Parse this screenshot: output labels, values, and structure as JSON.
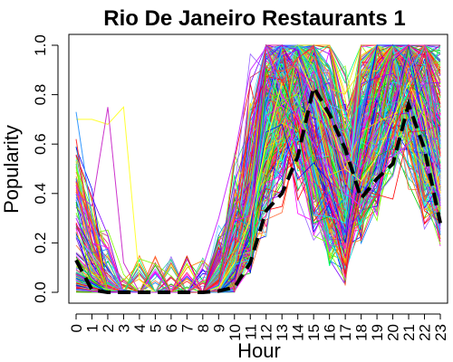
{
  "chart_data": {
    "type": "line",
    "title": "Rio De Janeiro Restaurants 1",
    "xlabel": "Hour",
    "ylabel": "Popularity",
    "x": [
      0,
      1,
      2,
      3,
      4,
      5,
      6,
      7,
      8,
      9,
      10,
      11,
      12,
      13,
      14,
      15,
      16,
      17,
      18,
      19,
      20,
      21,
      22,
      23
    ],
    "x_tick_labels": [
      "0",
      "1",
      "2",
      "3",
      "4",
      "5",
      "6",
      "7",
      "8",
      "9",
      "10",
      "11",
      "12",
      "13",
      "14",
      "15",
      "16",
      "17",
      "18",
      "19",
      "20",
      "21",
      "22",
      "23"
    ],
    "y_ticks": [
      0.0,
      0.2,
      0.4,
      0.6,
      0.8,
      1.0
    ],
    "y_tick_labels": [
      "0.0",
      "0.2",
      "0.4",
      "0.6",
      "0.8",
      "1.0"
    ],
    "xlim": [
      0,
      23
    ],
    "ylim": [
      0,
      1
    ],
    "grid": false,
    "legend": "none",
    "background_series_count": 300,
    "background_palette": [
      "#ff0000",
      "#ff7f00",
      "#ffd700",
      "#7fff00",
      "#00cc00",
      "#00ff7f",
      "#00ffff",
      "#007fff",
      "#0000ff",
      "#7f00ff",
      "#ff00ff",
      "#ff007f",
      "#cc3366",
      "#33cc99",
      "#9966ff",
      "#66ccff",
      "#ff6633",
      "#99ff33"
    ],
    "mean_series": {
      "values": [
        0.13,
        0.01,
        0.0,
        0.0,
        0.0,
        0.0,
        0.0,
        0.0,
        0.0,
        0.005,
        0.02,
        0.12,
        0.33,
        0.4,
        0.55,
        0.83,
        0.72,
        0.58,
        0.38,
        0.46,
        0.52,
        0.76,
        0.58,
        0.28
      ],
      "color": "#000000",
      "style": "dashed"
    },
    "highlight_series": [
      {
        "color": "#ffff33",
        "values": [
          0.7,
          0.7,
          0.68,
          0.75,
          0.05,
          0.0,
          0.0,
          0.0,
          0.0,
          0.02,
          0.12,
          0.3,
          0.6,
          0.85,
          0.95,
          0.8,
          0.7,
          0.5,
          0.45,
          0.55,
          0.7,
          0.85,
          0.7,
          0.4
        ]
      },
      {
        "color": "#cc33cc",
        "values": [
          0.4,
          0.35,
          0.75,
          0.12,
          0.0,
          0.0,
          0.0,
          0.0,
          0.05,
          0.2,
          0.35,
          0.55,
          0.85,
          0.97,
          0.9,
          0.8,
          0.6,
          0.55,
          0.5,
          0.6,
          0.75,
          0.95,
          0.85,
          0.5
        ]
      },
      {
        "color": "#3399ff",
        "values": [
          0.73,
          0.3,
          0.1,
          0.0,
          0.0,
          0.0,
          0.0,
          0.0,
          0.0,
          0.0,
          0.1,
          0.4,
          0.75,
          0.99,
          0.99,
          0.9,
          0.8,
          0.6,
          0.4,
          0.5,
          0.6,
          0.9,
          0.99,
          0.6
        ]
      },
      {
        "color": "#ff3333",
        "values": [
          0.62,
          0.2,
          0.05,
          0.0,
          0.0,
          0.0,
          0.0,
          0.0,
          0.0,
          0.05,
          0.3,
          0.7,
          0.99,
          0.85,
          0.95,
          0.99,
          0.7,
          0.45,
          0.3,
          0.4,
          0.65,
          0.8,
          0.99,
          0.55
        ]
      },
      {
        "color": "#cc33ff",
        "values": [
          0.3,
          0.15,
          0.05,
          0.0,
          0.0,
          0.0,
          0.0,
          0.0,
          0.1,
          0.3,
          0.55,
          0.9,
          0.99,
          0.8,
          0.7,
          0.6,
          0.5,
          0.4,
          0.35,
          0.45,
          0.55,
          0.6,
          0.75,
          0.35
        ]
      }
    ]
  }
}
